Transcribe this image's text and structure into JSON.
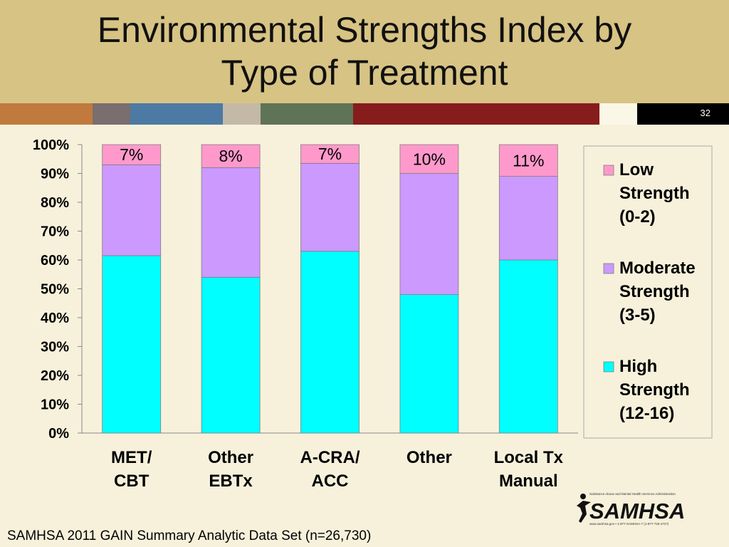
{
  "slide": {
    "title": "Environmental Strengths Index by\nType of Treatment",
    "slide_number": "32",
    "footer": "SAMHSA 2011 GAIN Summary Analytic Data Set (n=26,730)",
    "logo": {
      "wordmark": "SAMHSA",
      "tagline": "Substance Abuse and Mental Health Services Administration",
      "contact": "www.samhsa.gov • 1-877-SAMHSA-7 (1-877-726-4727)"
    },
    "stripe_colors": [
      "#c07a3e",
      "#7a6e6e",
      "#4d7aa5",
      "#c3b9a6",
      "#5f7356",
      "#861c1c",
      "#fbf7e6"
    ]
  },
  "chart_data": {
    "type": "bar",
    "stacked": true,
    "categories": [
      [
        "MET/",
        "CBT"
      ],
      [
        "Other",
        "EBTx"
      ],
      [
        "A-CRA/",
        "ACC"
      ],
      [
        "Other"
      ],
      [
        "Local Tx",
        "Manual"
      ]
    ],
    "y_ticks": [
      "0%",
      "10%",
      "20%",
      "30%",
      "40%",
      "50%",
      "60%",
      "70%",
      "80%",
      "90%",
      "100%"
    ],
    "ylim": [
      0,
      100
    ],
    "series": [
      {
        "name": [
          "High",
          "Strength",
          "(12-16)"
        ],
        "color": "#00ffff",
        "values": [
          61.5,
          54,
          63,
          48,
          60
        ]
      },
      {
        "name": [
          "Moderate",
          "Strength",
          "(3-5)"
        ],
        "color": "#cc99ff",
        "values": [
          31.5,
          38,
          30.5,
          42,
          29
        ]
      },
      {
        "name": [
          "Low",
          "Strength",
          "(0-2)"
        ],
        "color": "#ff99cc",
        "values": [
          7,
          8,
          6.5,
          10,
          11
        ]
      }
    ],
    "data_labels": [
      "7%",
      "8%",
      "7%",
      "10%",
      "11%"
    ],
    "legend_position": "right",
    "grid": false
  }
}
